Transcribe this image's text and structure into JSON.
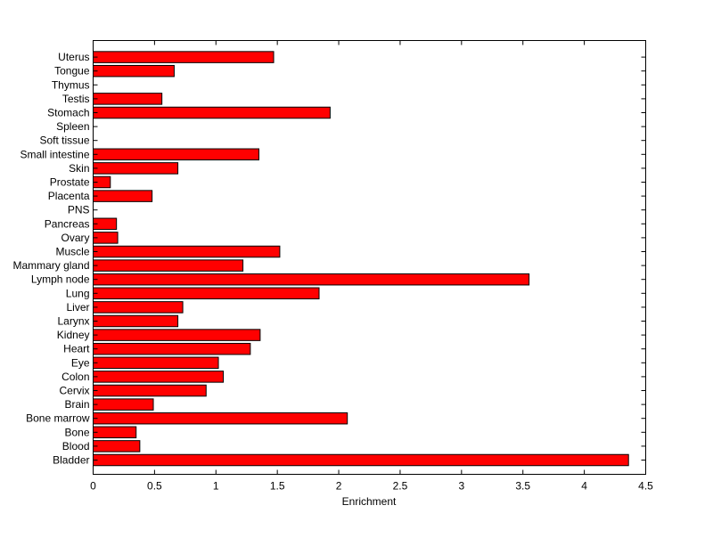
{
  "chart_data": {
    "type": "bar",
    "orientation": "horizontal",
    "title": "",
    "xlabel": "Enrichment",
    "ylabel": "",
    "xlim": [
      0,
      4.5
    ],
    "xticks": [
      "0",
      "0.5",
      "1",
      "1.5",
      "2",
      "2.5",
      "3",
      "3.5",
      "4",
      "4.5"
    ],
    "grid": false,
    "bar_color": "#ff0000",
    "bar_edge_color": "#000000",
    "categories": [
      "Bladder",
      "Blood",
      "Bone",
      "Bone marrow",
      "Brain",
      "Cervix",
      "Colon",
      "Eye",
      "Heart",
      "Kidney",
      "Larynx",
      "Liver",
      "Lung",
      "Lymph node",
      "Mammary gland",
      "Muscle",
      "Ovary",
      "Pancreas",
      "PNS",
      "Placenta",
      "Prostate",
      "Skin",
      "Small intestine",
      "Soft tissue",
      "Spleen",
      "Stomach",
      "Testis",
      "Thymus",
      "Tongue",
      "Uterus"
    ],
    "values": [
      4.36,
      0.38,
      0.35,
      2.07,
      0.49,
      0.92,
      1.06,
      1.02,
      1.28,
      1.36,
      0.69,
      0.73,
      1.84,
      3.55,
      1.22,
      1.52,
      0.2,
      0.19,
      0,
      0.48,
      0.14,
      0.69,
      1.35,
      0,
      0,
      1.93,
      0.56,
      0,
      0.66,
      1.47
    ]
  }
}
